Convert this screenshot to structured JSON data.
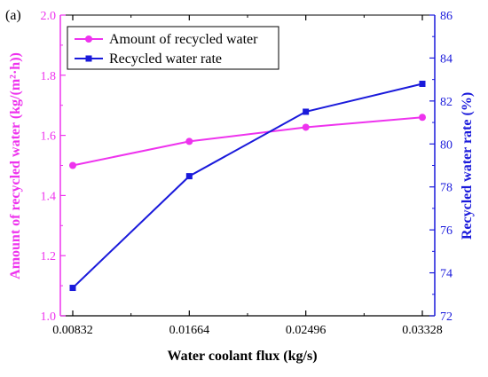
{
  "chart_data": {
    "type": "line",
    "panel_label": "(a)",
    "title": "",
    "xlabel": "Water coolant flux (kg/s)",
    "ylabel_left": "Amount of recycled water (kg/(m²·h))",
    "ylabel_right": "Recycled water rate (%)",
    "x": [
      0.00832,
      0.01664,
      0.02496,
      0.03328
    ],
    "x_tick_labels": [
      "0.00832",
      "0.01664",
      "0.02496",
      "0.03328"
    ],
    "y_left_lim": [
      1.0,
      2.0
    ],
    "y_left_ticks": [
      1.0,
      1.2,
      1.4,
      1.6,
      1.8,
      2.0
    ],
    "y_left_tick_labels": [
      "1.0",
      "1.2",
      "1.4",
      "1.6",
      "1.8",
      "2.0"
    ],
    "y_right_lim": [
      72,
      86
    ],
    "y_right_ticks": [
      72,
      74,
      76,
      78,
      80,
      82,
      84,
      86
    ],
    "y_right_tick_labels": [
      "72",
      "74",
      "76",
      "78",
      "80",
      "82",
      "84",
      "86"
    ],
    "grid": false,
    "legend_position": "top-left",
    "series": [
      {
        "name": "Amount of recycled water",
        "axis": "left",
        "marker": "circle",
        "color": "#ee33ee",
        "values": [
          1.5,
          1.58,
          1.627,
          1.66
        ]
      },
      {
        "name": "Recycled water rate",
        "axis": "right",
        "marker": "square",
        "color": "#1a1adb",
        "values": [
          73.3,
          78.5,
          81.5,
          82.8
        ]
      }
    ],
    "left_axis_color": "#ee33ee",
    "right_axis_color": "#1a1adb"
  }
}
